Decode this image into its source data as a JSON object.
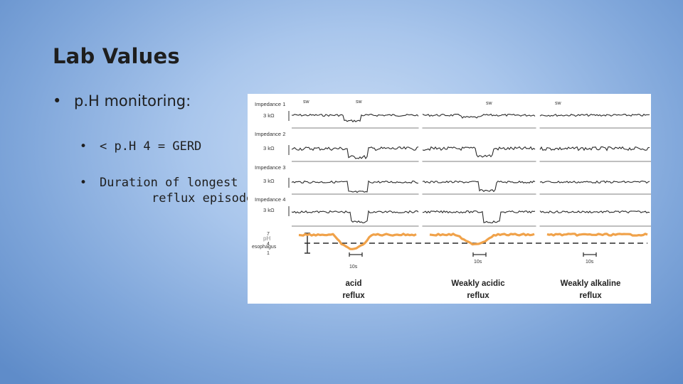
{
  "slide": {
    "title": "Lab Values",
    "bullets": [
      {
        "text": "p.H monitoring:"
      }
    ],
    "sub_bullets": [
      {
        "text": "< p.H 4 = GERD"
      },
      {
        "line1": "Duration of longest",
        "line2": "reflux episode"
      }
    ]
  },
  "figure": {
    "channels": [
      {
        "name": "Impedance 1",
        "scale": "3 kΩ"
      },
      {
        "name": "Impedance 2",
        "scale": "3 kΩ"
      },
      {
        "name": "Impedance 3",
        "scale": "3 kΩ"
      },
      {
        "name": "Impedance 4",
        "scale": "3 kΩ"
      }
    ],
    "ph_label": "pH",
    "ph_sublabel": "esophagus",
    "ph_ticks": [
      "7",
      "4",
      "1"
    ],
    "sw_markers": [
      "sw",
      "sw",
      "sw",
      "sw"
    ],
    "time_markers": [
      "10s",
      "10s",
      "10s"
    ],
    "panels": [
      {
        "line1": "acid",
        "line2": "reflux"
      },
      {
        "line1": "Weakly acidic",
        "line2": "reflux"
      },
      {
        "line1": "Weakly alkaline",
        "line2": "reflux"
      }
    ],
    "colors": {
      "ph_trace": "#f0a24a",
      "trace": "#2a2a2a",
      "threshold": "#2a2a2a"
    }
  }
}
